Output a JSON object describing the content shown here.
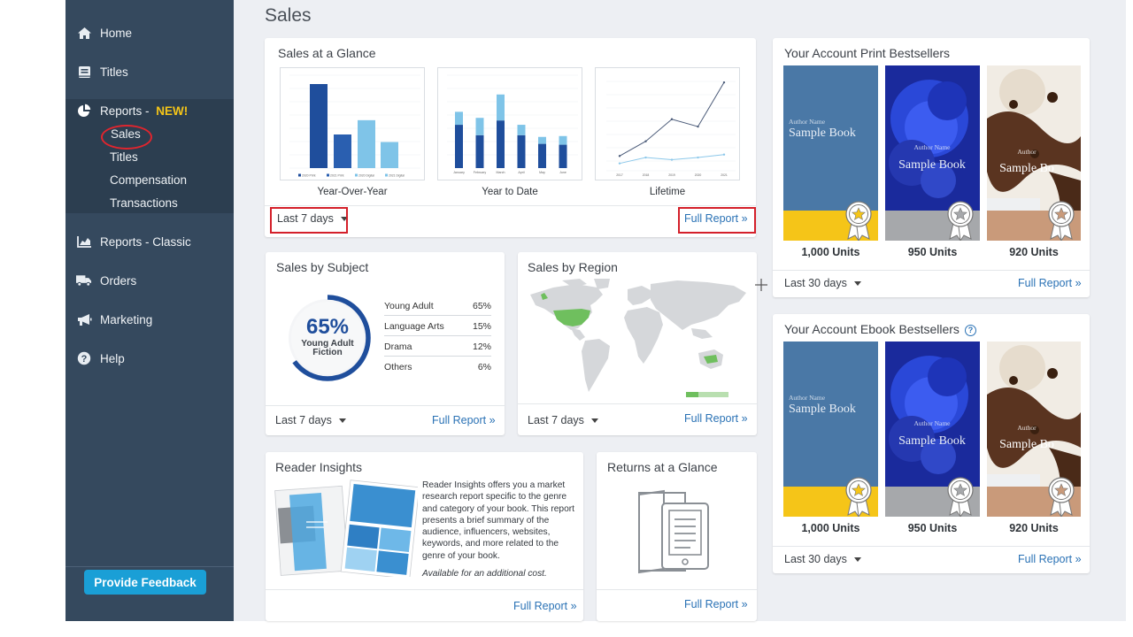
{
  "sidebar": {
    "items": [
      {
        "label": "Home",
        "icon": "home-icon"
      },
      {
        "label": "Titles",
        "icon": "book-icon"
      },
      {
        "label": "Reports - ",
        "badge": "NEW!",
        "icon": "pie-chart-icon"
      },
      {
        "label": "Reports - Classic",
        "icon": "bar-chart-icon"
      },
      {
        "label": "Orders",
        "icon": "truck-icon"
      },
      {
        "label": "Marketing",
        "icon": "megaphone-icon"
      },
      {
        "label": "Help",
        "icon": "help-icon"
      }
    ],
    "subitems": [
      "Sales",
      "Titles",
      "Compensation",
      "Transactions"
    ],
    "feedback_label": "Provide Feedback"
  },
  "page": {
    "title": "Sales"
  },
  "glance": {
    "title": "Sales at a Glance",
    "charts": [
      {
        "label": "Year-Over-Year",
        "chart_data": {
          "type": "bar",
          "series": [
            {
              "name": "2020 Print",
              "values": [
                100
              ],
              "color": "#1f4e9c"
            },
            {
              "name": "2021 Print",
              "values": [
                40
              ],
              "color": "#2a5fb0"
            },
            {
              "name": "2020 Digital",
              "values": [
                57
              ],
              "color": "#7fc4e8"
            },
            {
              "name": "2021 Digital",
              "values": [
                31
              ],
              "color": "#7fc4e8"
            }
          ]
        }
      },
      {
        "label": "Year to Date",
        "chart_data": {
          "type": "bar",
          "categories": [
            "January",
            "February",
            "March",
            "April",
            "May",
            "June"
          ],
          "series": [
            {
              "name": "Print",
              "values": [
                50,
                38,
                55,
                38,
                28,
                27
              ],
              "color": "#1f4e9c"
            },
            {
              "name": "Digital",
              "values": [
                15,
                20,
                30,
                12,
                8,
                10
              ],
              "color": "#7fc4e8"
            }
          ]
        }
      },
      {
        "label": "Lifetime",
        "chart_data": {
          "type": "line",
          "categories": [
            "2017",
            "2018",
            "2019",
            "2020",
            "2021"
          ],
          "series": [
            {
              "name": "Print",
              "values": [
                20,
                40,
                70,
                60,
                120
              ],
              "color": "#4a5a78"
            },
            {
              "name": "Digital",
              "values": [
                10,
                18,
                15,
                18,
                22
              ],
              "color": "#8cc8ea"
            }
          ]
        }
      }
    ],
    "period": "Last 7 days",
    "full_report": "Full Report »"
  },
  "subject": {
    "title": "Sales by Subject",
    "percent": 65,
    "percent_label": "65%",
    "caption_1": "Young Adult",
    "caption_2": "Fiction",
    "rows": [
      {
        "name": "Young Adult",
        "value": "65%"
      },
      {
        "name": "Language Arts",
        "value": "15%"
      },
      {
        "name": "Drama",
        "value": "12%"
      },
      {
        "name": "Others",
        "value": "6%"
      }
    ],
    "period": "Last 7 days",
    "full_report": "Full Report »"
  },
  "region": {
    "title": "Sales by Region",
    "period": "Last 7 days",
    "full_report": "Full Report »",
    "highlight_color": "#6fbf5e"
  },
  "print_best": {
    "title": "Your Account Print Bestsellers",
    "books": [
      {
        "author": "Author Name",
        "title": "Sample Book",
        "units": "1,000 Units",
        "medal": "gold"
      },
      {
        "author": "Author Name",
        "title": "Sample Book",
        "units": "950 Units",
        "medal": "silver"
      },
      {
        "author": "Author",
        "title": "Sample Bo",
        "units": "920 Units",
        "medal": "bronze"
      }
    ],
    "period": "Last 30 days",
    "full_report": "Full Report »"
  },
  "ebook_best": {
    "title": "Your Account Ebook Bestsellers",
    "books": [
      {
        "author": "Author Name",
        "title": "Sample Book",
        "units": "1,000 Units",
        "medal": "gold"
      },
      {
        "author": "Author Name",
        "title": "Sample Book",
        "units": "950 Units",
        "medal": "silver"
      },
      {
        "author": "Author",
        "title": "Sample Bo",
        "units": "920 Units",
        "medal": "bronze"
      }
    ],
    "period": "Last 30 days",
    "full_report": "Full Report »"
  },
  "insights": {
    "title": "Reader Insights",
    "text": "Reader Insights offers you a market research report specific to the genre and category of your book. This report presents a brief summary of the audience, influencers, websites, keywords, and more related to the genre of your book.",
    "note": "Available for an additional cost.",
    "full_report": "Full Report »"
  },
  "returns": {
    "title": "Returns at a Glance",
    "full_report": "Full Report »"
  }
}
